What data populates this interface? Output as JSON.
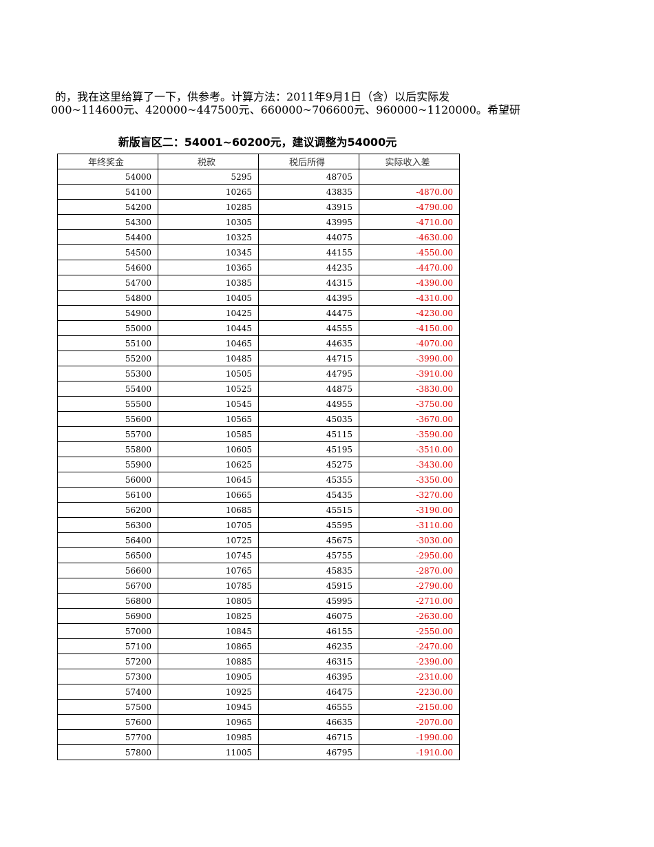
{
  "intro": {
    "line1": "的，我在这里给算了一下，供参考。计算方法：2011年9月1日（含）以后实际发",
    "line2": "000~114600元、420000~447500元、660000~706600元、960000~1120000。希望研"
  },
  "table_title": "新版盲区二：54001~60200元，建议调整为54000元",
  "headers": [
    "年终奖金",
    "税款",
    "税后所得",
    "实际收入差"
  ],
  "rows": [
    [
      "54000",
      "5295",
      "48705",
      ""
    ],
    [
      "54100",
      "10265",
      "43835",
      "-4870.00"
    ],
    [
      "54200",
      "10285",
      "43915",
      "-4790.00"
    ],
    [
      "54300",
      "10305",
      "43995",
      "-4710.00"
    ],
    [
      "54400",
      "10325",
      "44075",
      "-4630.00"
    ],
    [
      "54500",
      "10345",
      "44155",
      "-4550.00"
    ],
    [
      "54600",
      "10365",
      "44235",
      "-4470.00"
    ],
    [
      "54700",
      "10385",
      "44315",
      "-4390.00"
    ],
    [
      "54800",
      "10405",
      "44395",
      "-4310.00"
    ],
    [
      "54900",
      "10425",
      "44475",
      "-4230.00"
    ],
    [
      "55000",
      "10445",
      "44555",
      "-4150.00"
    ],
    [
      "55100",
      "10465",
      "44635",
      "-4070.00"
    ],
    [
      "55200",
      "10485",
      "44715",
      "-3990.00"
    ],
    [
      "55300",
      "10505",
      "44795",
      "-3910.00"
    ],
    [
      "55400",
      "10525",
      "44875",
      "-3830.00"
    ],
    [
      "55500",
      "10545",
      "44955",
      "-3750.00"
    ],
    [
      "55600",
      "10565",
      "45035",
      "-3670.00"
    ],
    [
      "55700",
      "10585",
      "45115",
      "-3590.00"
    ],
    [
      "55800",
      "10605",
      "45195",
      "-3510.00"
    ],
    [
      "55900",
      "10625",
      "45275",
      "-3430.00"
    ],
    [
      "56000",
      "10645",
      "45355",
      "-3350.00"
    ],
    [
      "56100",
      "10665",
      "45435",
      "-3270.00"
    ],
    [
      "56200",
      "10685",
      "45515",
      "-3190.00"
    ],
    [
      "56300",
      "10705",
      "45595",
      "-3110.00"
    ],
    [
      "56400",
      "10725",
      "45675",
      "-3030.00"
    ],
    [
      "56500",
      "10745",
      "45755",
      "-2950.00"
    ],
    [
      "56600",
      "10765",
      "45835",
      "-2870.00"
    ],
    [
      "56700",
      "10785",
      "45915",
      "-2790.00"
    ],
    [
      "56800",
      "10805",
      "45995",
      "-2710.00"
    ],
    [
      "56900",
      "10825",
      "46075",
      "-2630.00"
    ],
    [
      "57000",
      "10845",
      "46155",
      "-2550.00"
    ],
    [
      "57100",
      "10865",
      "46235",
      "-2470.00"
    ],
    [
      "57200",
      "10885",
      "46315",
      "-2390.00"
    ],
    [
      "57300",
      "10905",
      "46395",
      "-2310.00"
    ],
    [
      "57400",
      "10925",
      "46475",
      "-2230.00"
    ],
    [
      "57500",
      "10945",
      "46555",
      "-2150.00"
    ],
    [
      "57600",
      "10965",
      "46635",
      "-2070.00"
    ],
    [
      "57700",
      "10985",
      "46715",
      "-1990.00"
    ],
    [
      "57800",
      "11005",
      "46795",
      "-1910.00"
    ]
  ],
  "colors": {
    "negative": "#e00000"
  }
}
